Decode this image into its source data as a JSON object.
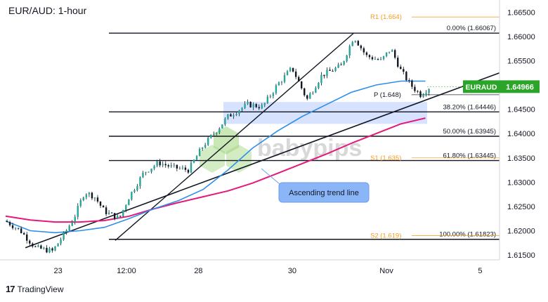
{
  "header": {
    "title": "EUR/AUD: 1-hour"
  },
  "footer": {
    "brand": "TradingView",
    "logo_icon": "tradingview-logo-icon"
  },
  "watermark": {
    "text": "babypips",
    "logo_icon": "babypips-hexagon-logo"
  },
  "colors": {
    "up": "#26a69a",
    "down": "#131722",
    "candle": "#131722",
    "ma_fast": "#2f8fe8",
    "ma_slow": "#e5197a",
    "fib": "#131722",
    "pivot_orange": "#f59b21",
    "zone": "#c9d8ff",
    "price_tag": "#2aa52a",
    "callout": "#8ab6f8"
  },
  "chart_data": {
    "type": "candlestick",
    "symbol": "EURAUD",
    "last_price": "1.64966",
    "ylim": [
      1.614,
      1.6675
    ],
    "y_ticks": [
      "1.66500",
      "1.66000",
      "1.65500",
      "1.65000",
      "1.64500",
      "1.64000",
      "1.63500",
      "1.63000",
      "1.62500",
      "1.62000",
      "1.61500"
    ],
    "x_labels": [
      {
        "label": "23",
        "pos": 0.1061
      },
      {
        "label": "12:00",
        "pos": 0.2447
      },
      {
        "label": "28",
        "pos": 0.3904
      },
      {
        "label": "30",
        "pos": 0.5803
      },
      {
        "label": "Nov",
        "pos": 0.7711
      },
      {
        "label": "5",
        "pos": 0.9608
      }
    ],
    "fib_levels": [
      {
        "ratio": "0.00%",
        "price": 1.66067,
        "label": "0.00% (1.66067)"
      },
      {
        "ratio": "38.20%",
        "price": 1.64446,
        "label": "38.20% (1.64446)"
      },
      {
        "ratio": "50.00%",
        "price": 1.63945,
        "label": "50.00% (1.63945)"
      },
      {
        "ratio": "61.80%",
        "price": 1.63445,
        "label": "61.80% (1.63445)"
      },
      {
        "ratio": "100.00%",
        "price": 1.61823,
        "label": "100.00% (1.61823)"
      }
    ],
    "pivots": [
      {
        "name": "R1",
        "price": 1.664,
        "label": "R1 (1.664)",
        "color": "orange"
      },
      {
        "name": "P",
        "price": 1.648,
        "label": "P (1.648)",
        "color": "dark"
      },
      {
        "name": "S1",
        "price": 1.635,
        "label": "S1 (1.635)",
        "color": "orange"
      },
      {
        "name": "S2",
        "price": 1.619,
        "label": "S2 (1.619)",
        "color": "orange"
      }
    ],
    "zone": {
      "from": 1.642,
      "to": 1.6465
    },
    "annotation": "Ascending trend line",
    "ma_fast": [
      {
        "x": 0.0,
        "y": 1.622
      },
      {
        "x": 0.05,
        "y": 1.62
      },
      {
        "x": 0.1,
        "y": 1.6196
      },
      {
        "x": 0.15,
        "y": 1.62
      },
      {
        "x": 0.2,
        "y": 1.6207
      },
      {
        "x": 0.25,
        "y": 1.6225
      },
      {
        "x": 0.3,
        "y": 1.6245
      },
      {
        "x": 0.35,
        "y": 1.6262
      },
      {
        "x": 0.4,
        "y": 1.6285
      },
      {
        "x": 0.45,
        "y": 1.6325
      },
      {
        "x": 0.5,
        "y": 1.637
      },
      {
        "x": 0.55,
        "y": 1.6405
      },
      {
        "x": 0.6,
        "y": 1.6435
      },
      {
        "x": 0.65,
        "y": 1.646
      },
      {
        "x": 0.7,
        "y": 1.6485
      },
      {
        "x": 0.75,
        "y": 1.65
      },
      {
        "x": 0.8,
        "y": 1.6508
      },
      {
        "x": 0.85,
        "y": 1.6508
      }
    ],
    "ma_slow": [
      {
        "x": 0.0,
        "y": 1.623
      },
      {
        "x": 0.05,
        "y": 1.6222
      },
      {
        "x": 0.1,
        "y": 1.6218
      },
      {
        "x": 0.15,
        "y": 1.6218
      },
      {
        "x": 0.2,
        "y": 1.6221
      },
      {
        "x": 0.25,
        "y": 1.623
      },
      {
        "x": 0.3,
        "y": 1.6245
      },
      {
        "x": 0.35,
        "y": 1.6258
      },
      {
        "x": 0.4,
        "y": 1.627
      },
      {
        "x": 0.45,
        "y": 1.6282
      },
      {
        "x": 0.5,
        "y": 1.6298
      },
      {
        "x": 0.55,
        "y": 1.6318
      },
      {
        "x": 0.6,
        "y": 1.6338
      },
      {
        "x": 0.65,
        "y": 1.6358
      },
      {
        "x": 0.7,
        "y": 1.638
      },
      {
        "x": 0.75,
        "y": 1.64
      },
      {
        "x": 0.8,
        "y": 1.642
      },
      {
        "x": 0.85,
        "y": 1.6432
      }
    ],
    "trend_line": [
      {
        "x": 0.04,
        "y": 1.6165
      },
      {
        "x": 1.0,
        "y": 1.6525
      }
    ],
    "channel_line": [
      {
        "x": 0.222,
        "y": 1.618
      },
      {
        "x": 0.705,
        "y": 1.6607
      }
    ],
    "candles_anchor": [
      {
        "x": 0.0,
        "y": 1.622
      },
      {
        "x": 0.03,
        "y": 1.62
      },
      {
        "x": 0.06,
        "y": 1.6165
      },
      {
        "x": 0.095,
        "y": 1.6158
      },
      {
        "x": 0.12,
        "y": 1.6195
      },
      {
        "x": 0.14,
        "y": 1.623
      },
      {
        "x": 0.16,
        "y": 1.628
      },
      {
        "x": 0.18,
        "y": 1.627
      },
      {
        "x": 0.2,
        "y": 1.624
      },
      {
        "x": 0.23,
        "y": 1.6225
      },
      {
        "x": 0.25,
        "y": 1.627
      },
      {
        "x": 0.28,
        "y": 1.632
      },
      {
        "x": 0.31,
        "y": 1.634
      },
      {
        "x": 0.34,
        "y": 1.633
      },
      {
        "x": 0.37,
        "y": 1.6325
      },
      {
        "x": 0.4,
        "y": 1.6375
      },
      {
        "x": 0.43,
        "y": 1.641
      },
      {
        "x": 0.45,
        "y": 1.6435
      },
      {
        "x": 0.49,
        "y": 1.646
      },
      {
        "x": 0.52,
        "y": 1.6455
      },
      {
        "x": 0.55,
        "y": 1.65
      },
      {
        "x": 0.58,
        "y": 1.6535
      },
      {
        "x": 0.61,
        "y": 1.647
      },
      {
        "x": 0.64,
        "y": 1.652
      },
      {
        "x": 0.68,
        "y": 1.654
      },
      {
        "x": 0.705,
        "y": 1.66
      },
      {
        "x": 0.73,
        "y": 1.656
      },
      {
        "x": 0.76,
        "y": 1.655
      },
      {
        "x": 0.78,
        "y": 1.6575
      },
      {
        "x": 0.8,
        "y": 1.653
      },
      {
        "x": 0.82,
        "y": 1.65
      },
      {
        "x": 0.84,
        "y": 1.648
      },
      {
        "x": 0.86,
        "y": 1.6497
      }
    ]
  }
}
